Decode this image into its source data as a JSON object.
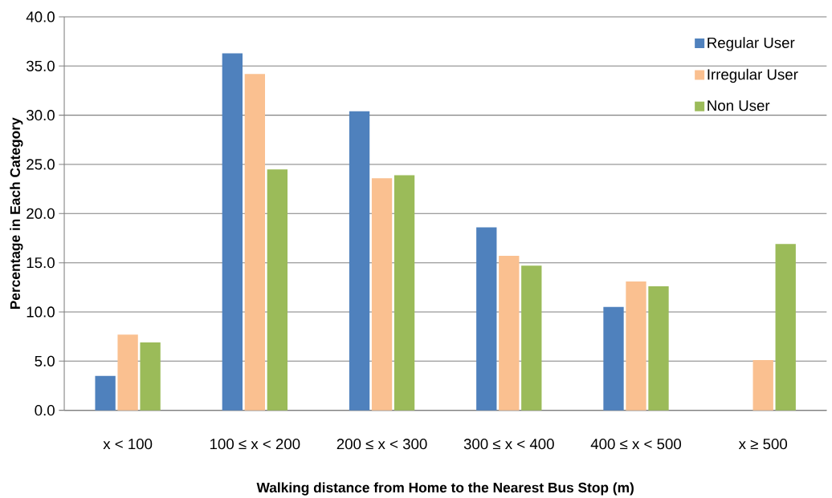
{
  "chart_data": {
    "type": "bar",
    "xlabel": "Walking distance  from Home to the Nearest Bus Stop (m)",
    "ylabel": "Percentage in Each Category",
    "categories": [
      "x < 100",
      "100 ≤ x < 200",
      "200 ≤ x < 300",
      "300 ≤ x < 400",
      "400 ≤ x < 500",
      "x ≥ 500"
    ],
    "series": [
      {
        "name": "Regular User",
        "color": "#4f81bd",
        "values": [
          3.5,
          36.3,
          30.4,
          18.6,
          10.5,
          0
        ]
      },
      {
        "name": "Irregular User",
        "color": "#fac090",
        "values": [
          7.7,
          34.2,
          23.6,
          15.7,
          13.1,
          5.1
        ]
      },
      {
        "name": "Non User",
        "color": "#9bbb59",
        "values": [
          6.9,
          24.5,
          23.9,
          14.7,
          12.6,
          16.9
        ]
      }
    ],
    "ylim": [
      0,
      40
    ],
    "yticks": [
      {
        "value": 0,
        "label": "0.0"
      },
      {
        "value": 5,
        "label": "5.0"
      },
      {
        "value": 10,
        "label": "10.0"
      },
      {
        "value": 15,
        "label": "15.0"
      },
      {
        "value": 20,
        "label": "20.0"
      },
      {
        "value": 25,
        "label": "25.0"
      },
      {
        "value": 30,
        "label": "30.0"
      },
      {
        "value": 35,
        "label": "35.0"
      },
      {
        "value": 40,
        "label": "40.0"
      }
    ],
    "grid": "y",
    "legend": "top right"
  }
}
